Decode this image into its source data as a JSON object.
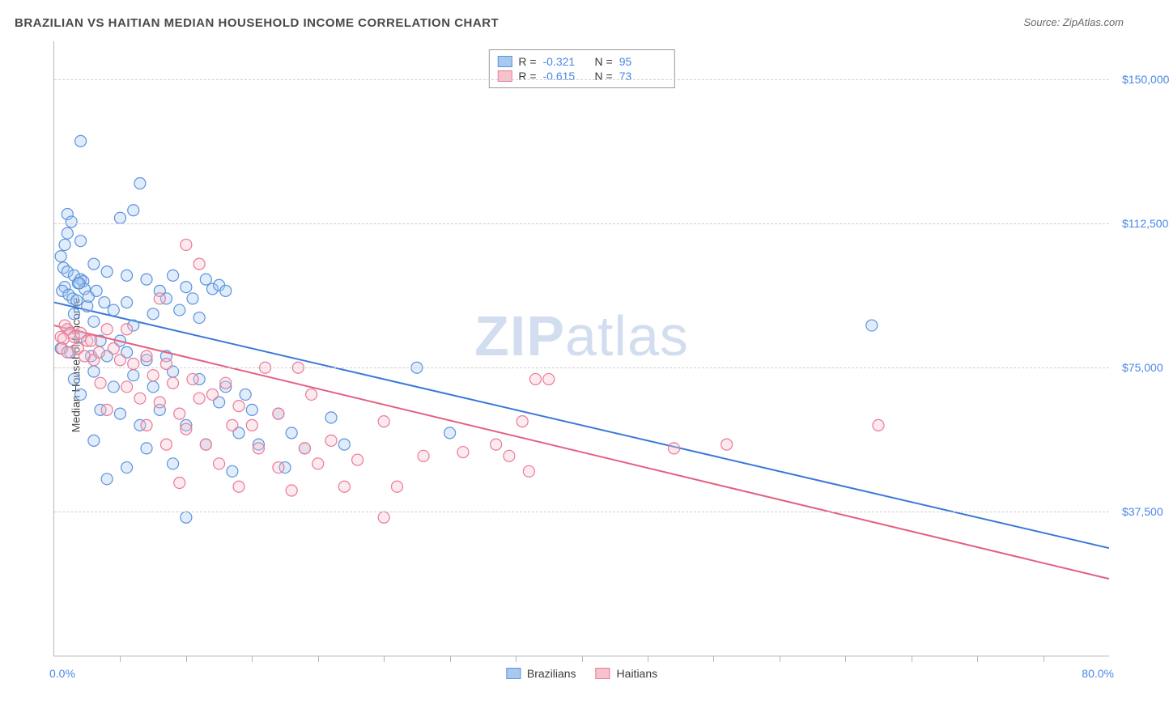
{
  "header": {
    "title": "BRAZILIAN VS HAITIAN MEDIAN HOUSEHOLD INCOME CORRELATION CHART",
    "source": "Source: ZipAtlas.com"
  },
  "watermark": {
    "zip": "ZIP",
    "atlas": "atlas"
  },
  "chart": {
    "type": "scatter",
    "y_axis_label": "Median Household Income",
    "x_min": 0.0,
    "x_max": 80.0,
    "x_min_label": "0.0%",
    "x_max_label": "80.0%",
    "x_tick_step": 5.0,
    "y_min": 0,
    "y_max": 160000,
    "y_gridlines": [
      37500,
      75000,
      112500,
      150000
    ],
    "y_tick_labels": [
      "$37,500",
      "$75,000",
      "$112,500",
      "$150,000"
    ],
    "background_color": "#ffffff",
    "grid_color": "#d0d0d0",
    "axis_color": "#b5b5b5",
    "label_color": "#4a86e8",
    "marker_radius": 7,
    "marker_stroke_width": 1.2,
    "marker_fill_opacity": 0.35,
    "line_width": 2,
    "series": [
      {
        "name": "Brazilians",
        "color_fill": "#a9c8f0",
        "color_stroke": "#5a94dd",
        "line_color": "#3b78d8",
        "R_label": "R =",
        "R_value": "-0.321",
        "N_label": "N =",
        "N_value": "95",
        "trend": {
          "x1": 0,
          "y1": 92000,
          "x2": 80,
          "y2": 28000
        },
        "points": [
          {
            "x": 2.0,
            "y": 134000
          },
          {
            "x": 6.5,
            "y": 123000
          },
          {
            "x": 1.0,
            "y": 115000
          },
          {
            "x": 1.3,
            "y": 113000
          },
          {
            "x": 6.0,
            "y": 116000
          },
          {
            "x": 1.0,
            "y": 110000
          },
          {
            "x": 0.8,
            "y": 107000
          },
          {
            "x": 2.0,
            "y": 108000
          },
          {
            "x": 0.5,
            "y": 104000
          },
          {
            "x": 0.7,
            "y": 101000
          },
          {
            "x": 1.0,
            "y": 100000
          },
          {
            "x": 1.5,
            "y": 99000
          },
          {
            "x": 2.0,
            "y": 98000
          },
          {
            "x": 2.2,
            "y": 97500
          },
          {
            "x": 1.8,
            "y": 97000
          },
          {
            "x": 0.8,
            "y": 96000
          },
          {
            "x": 0.6,
            "y": 95000
          },
          {
            "x": 1.1,
            "y": 94000
          },
          {
            "x": 1.4,
            "y": 93000
          },
          {
            "x": 3.0,
            "y": 102000
          },
          {
            "x": 4.0,
            "y": 100000
          },
          {
            "x": 5.0,
            "y": 114000
          },
          {
            "x": 5.5,
            "y": 99000
          },
          {
            "x": 7.0,
            "y": 98000
          },
          {
            "x": 8.0,
            "y": 95000
          },
          {
            "x": 8.5,
            "y": 93000
          },
          {
            "x": 9.0,
            "y": 99000
          },
          {
            "x": 10.0,
            "y": 96000
          },
          {
            "x": 11.5,
            "y": 98000
          },
          {
            "x": 12.0,
            "y": 95500
          },
          {
            "x": 12.5,
            "y": 96500
          },
          {
            "x": 13.0,
            "y": 95000
          },
          {
            "x": 2.5,
            "y": 91000
          },
          {
            "x": 1.5,
            "y": 89000
          },
          {
            "x": 4.5,
            "y": 90000
          },
          {
            "x": 3.0,
            "y": 87000
          },
          {
            "x": 1.0,
            "y": 85000
          },
          {
            "x": 5.5,
            "y": 92000
          },
          {
            "x": 7.5,
            "y": 89000
          },
          {
            "x": 6.0,
            "y": 86000
          },
          {
            "x": 9.5,
            "y": 90000
          },
          {
            "x": 2.0,
            "y": 83000
          },
          {
            "x": 3.5,
            "y": 82000
          },
          {
            "x": 5.0,
            "y": 82000
          },
          {
            "x": 10.5,
            "y": 93000
          },
          {
            "x": 11.0,
            "y": 88000
          },
          {
            "x": 0.5,
            "y": 80000
          },
          {
            "x": 1.2,
            "y": 79000
          },
          {
            "x": 2.8,
            "y": 78000
          },
          {
            "x": 4.0,
            "y": 78000
          },
          {
            "x": 5.5,
            "y": 79000
          },
          {
            "x": 7.0,
            "y": 77000
          },
          {
            "x": 8.5,
            "y": 78000
          },
          {
            "x": 3.0,
            "y": 74000
          },
          {
            "x": 1.5,
            "y": 72000
          },
          {
            "x": 6.0,
            "y": 73000
          },
          {
            "x": 9.0,
            "y": 74000
          },
          {
            "x": 4.5,
            "y": 70000
          },
          {
            "x": 2.0,
            "y": 68000
          },
          {
            "x": 7.5,
            "y": 70000
          },
          {
            "x": 11.0,
            "y": 72000
          },
          {
            "x": 13.0,
            "y": 70000
          },
          {
            "x": 14.5,
            "y": 68000
          },
          {
            "x": 3.5,
            "y": 64000
          },
          {
            "x": 5.0,
            "y": 63000
          },
          {
            "x": 8.0,
            "y": 64000
          },
          {
            "x": 12.5,
            "y": 66000
          },
          {
            "x": 15.0,
            "y": 64000
          },
          {
            "x": 17.0,
            "y": 63000
          },
          {
            "x": 6.5,
            "y": 60000
          },
          {
            "x": 10.0,
            "y": 60000
          },
          {
            "x": 14.0,
            "y": 58000
          },
          {
            "x": 18.0,
            "y": 58000
          },
          {
            "x": 21.0,
            "y": 62000
          },
          {
            "x": 3.0,
            "y": 56000
          },
          {
            "x": 7.0,
            "y": 54000
          },
          {
            "x": 11.5,
            "y": 55000
          },
          {
            "x": 15.5,
            "y": 55000
          },
          {
            "x": 19.0,
            "y": 54000
          },
          {
            "x": 9.0,
            "y": 50000
          },
          {
            "x": 5.5,
            "y": 49000
          },
          {
            "x": 13.5,
            "y": 48000
          },
          {
            "x": 17.5,
            "y": 49000
          },
          {
            "x": 22.0,
            "y": 55000
          },
          {
            "x": 27.5,
            "y": 75000
          },
          {
            "x": 30.0,
            "y": 58000
          },
          {
            "x": 4.0,
            "y": 46000
          },
          {
            "x": 10.0,
            "y": 36000
          },
          {
            "x": 62.0,
            "y": 86000
          },
          {
            "x": 1.7,
            "y": 92500
          },
          {
            "x": 2.3,
            "y": 95500
          },
          {
            "x": 1.9,
            "y": 97000
          },
          {
            "x": 2.6,
            "y": 93500
          },
          {
            "x": 3.2,
            "y": 95000
          },
          {
            "x": 3.8,
            "y": 92000
          }
        ]
      },
      {
        "name": "Haitians",
        "color_fill": "#f6c3cd",
        "color_stroke": "#e97a97",
        "line_color": "#e26182",
        "R_label": "R =",
        "R_value": "-0.615",
        "N_label": "N =",
        "N_value": "73",
        "trend": {
          "x1": 0,
          "y1": 86000,
          "x2": 80,
          "y2": 20000
        },
        "points": [
          {
            "x": 10.0,
            "y": 107000
          },
          {
            "x": 11.0,
            "y": 102000
          },
          {
            "x": 8.0,
            "y": 93000
          },
          {
            "x": 1.0,
            "y": 85000
          },
          {
            "x": 0.8,
            "y": 86000
          },
          {
            "x": 1.2,
            "y": 84000
          },
          {
            "x": 0.5,
            "y": 83000
          },
          {
            "x": 0.7,
            "y": 82500
          },
          {
            "x": 1.5,
            "y": 83000
          },
          {
            "x": 2.0,
            "y": 84000
          },
          {
            "x": 2.5,
            "y": 82000
          },
          {
            "x": 0.6,
            "y": 80000
          },
          {
            "x": 1.0,
            "y": 79000
          },
          {
            "x": 1.8,
            "y": 80000
          },
          {
            "x": 2.3,
            "y": 78000
          },
          {
            "x": 3.0,
            "y": 77000
          },
          {
            "x": 4.0,
            "y": 85000
          },
          {
            "x": 4.5,
            "y": 80000
          },
          {
            "x": 5.5,
            "y": 85000
          },
          {
            "x": 5.0,
            "y": 77000
          },
          {
            "x": 6.0,
            "y": 76000
          },
          {
            "x": 7.0,
            "y": 78000
          },
          {
            "x": 8.5,
            "y": 76000
          },
          {
            "x": 7.5,
            "y": 73000
          },
          {
            "x": 3.5,
            "y": 71000
          },
          {
            "x": 5.5,
            "y": 70000
          },
          {
            "x": 9.0,
            "y": 71000
          },
          {
            "x": 10.5,
            "y": 72000
          },
          {
            "x": 6.5,
            "y": 67000
          },
          {
            "x": 8.0,
            "y": 66000
          },
          {
            "x": 11.0,
            "y": 67000
          },
          {
            "x": 12.0,
            "y": 68000
          },
          {
            "x": 4.0,
            "y": 64000
          },
          {
            "x": 9.5,
            "y": 63000
          },
          {
            "x": 13.0,
            "y": 71000
          },
          {
            "x": 14.0,
            "y": 65000
          },
          {
            "x": 7.0,
            "y": 60000
          },
          {
            "x": 10.0,
            "y": 59000
          },
          {
            "x": 13.5,
            "y": 60000
          },
          {
            "x": 16.0,
            "y": 75000
          },
          {
            "x": 15.0,
            "y": 60000
          },
          {
            "x": 17.0,
            "y": 63000
          },
          {
            "x": 18.5,
            "y": 75000
          },
          {
            "x": 19.5,
            "y": 68000
          },
          {
            "x": 8.5,
            "y": 55000
          },
          {
            "x": 11.5,
            "y": 55000
          },
          {
            "x": 15.5,
            "y": 54000
          },
          {
            "x": 19.0,
            "y": 54000
          },
          {
            "x": 21.0,
            "y": 56000
          },
          {
            "x": 12.5,
            "y": 50000
          },
          {
            "x": 17.0,
            "y": 49000
          },
          {
            "x": 20.0,
            "y": 50000
          },
          {
            "x": 23.0,
            "y": 51000
          },
          {
            "x": 25.0,
            "y": 61000
          },
          {
            "x": 9.5,
            "y": 45000
          },
          {
            "x": 14.0,
            "y": 44000
          },
          {
            "x": 18.0,
            "y": 43000
          },
          {
            "x": 22.0,
            "y": 44000
          },
          {
            "x": 26.0,
            "y": 44000
          },
          {
            "x": 28.0,
            "y": 52000
          },
          {
            "x": 31.0,
            "y": 53000
          },
          {
            "x": 33.5,
            "y": 55000
          },
          {
            "x": 34.5,
            "y": 52000
          },
          {
            "x": 36.0,
            "y": 48000
          },
          {
            "x": 35.5,
            "y": 61000
          },
          {
            "x": 37.5,
            "y": 72000
          },
          {
            "x": 36.5,
            "y": 72000
          },
          {
            "x": 25.0,
            "y": 36000
          },
          {
            "x": 47.0,
            "y": 54000
          },
          {
            "x": 51.0,
            "y": 55000
          },
          {
            "x": 62.5,
            "y": 60000
          },
          {
            "x": 2.8,
            "y": 82000
          },
          {
            "x": 3.4,
            "y": 79000
          }
        ]
      }
    ],
    "bottom_legend": [
      {
        "label": "Brazilians",
        "fill": "#a9c8f0",
        "stroke": "#5a94dd"
      },
      {
        "label": "Haitians",
        "fill": "#f6c3cd",
        "stroke": "#e97a97"
      }
    ]
  }
}
